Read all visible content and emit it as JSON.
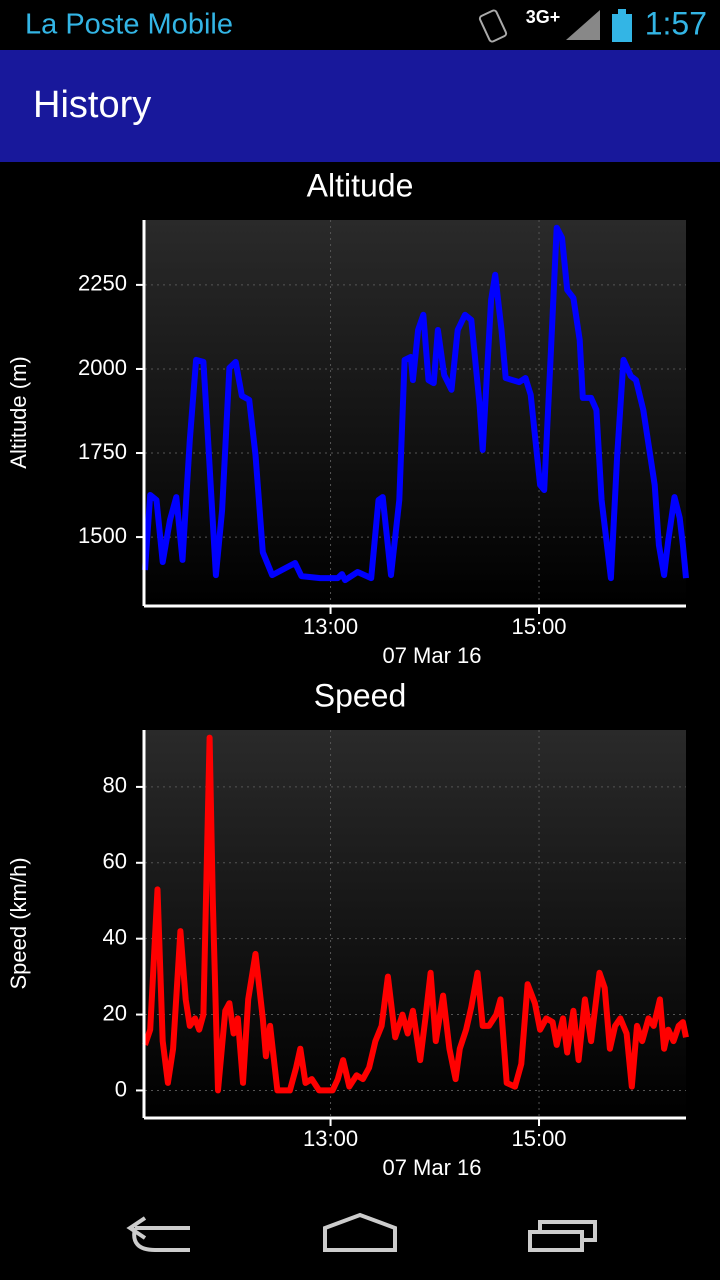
{
  "status_bar": {
    "app": "La Poste Mobile",
    "network": "3G+",
    "time": "1:57"
  },
  "app_bar": {
    "title": "History"
  },
  "chart_data": [
    {
      "type": "line",
      "title": "Altitude",
      "x_label": "07 Mar 16",
      "y_label": "Altitude (m)",
      "color": "#0000ff",
      "grid": true,
      "xlim": [
        11.22,
        16.41
      ],
      "xticks": [
        {
          "value": 13,
          "label": "13:00"
        },
        {
          "value": 15,
          "label": "15:00"
        }
      ],
      "ylim": [
        1298,
        2443
      ],
      "yticks": [
        1500,
        1750,
        2000,
        2250
      ],
      "x": [
        11.22,
        11.27,
        11.33,
        11.39,
        11.46,
        11.52,
        11.58,
        11.65,
        11.71,
        11.78,
        11.82,
        11.9,
        11.96,
        12.03,
        12.09,
        12.15,
        12.22,
        12.28,
        12.35,
        12.44,
        12.66,
        12.72,
        12.9,
        13.07,
        13.11,
        13.14,
        13.26,
        13.39,
        13.46,
        13.5,
        13.58,
        13.66,
        13.71,
        13.77,
        13.79,
        13.84,
        13.89,
        13.94,
        13.99,
        14.03,
        14.09,
        14.16,
        14.22,
        14.29,
        14.35,
        14.43,
        14.46,
        14.54,
        14.58,
        14.64,
        14.68,
        14.81,
        14.87,
        14.92,
        15.01,
        15.05,
        15.11,
        15.17,
        15.22,
        15.27,
        15.33,
        15.39,
        15.42,
        15.5,
        15.55,
        15.6,
        15.69,
        15.75,
        15.81,
        15.88,
        15.93,
        16.0,
        16.11,
        16.15,
        16.2,
        16.24,
        16.3,
        16.35,
        16.38,
        16.41
      ],
      "values": [
        1402,
        1625,
        1610,
        1426,
        1551,
        1619,
        1432,
        1789,
        2027,
        2021,
        1818,
        1387,
        1580,
        2003,
        2021,
        1920,
        1908,
        1744,
        1455,
        1387,
        1423,
        1384,
        1378,
        1378,
        1390,
        1372,
        1396,
        1378,
        1610,
        1619,
        1387,
        1610,
        2027,
        2036,
        1967,
        2116,
        2161,
        1967,
        1958,
        2116,
        1982,
        1938,
        2116,
        2161,
        2146,
        1893,
        1759,
        2205,
        2280,
        2116,
        1973,
        1961,
        1973,
        1923,
        1655,
        1640,
        2027,
        2420,
        2390,
        2235,
        2211,
        2086,
        1914,
        1914,
        1878,
        1610,
        1378,
        1744,
        2027,
        1979,
        1967,
        1878,
        1655,
        1476,
        1387,
        1491,
        1619,
        1557,
        1476,
        1378
      ]
    },
    {
      "type": "line",
      "title": "Speed",
      "x_label": "07 Mar 16",
      "y_label": "Speed (km/h)",
      "color": "#ff0000",
      "grid": true,
      "xlim": [
        11.22,
        16.41
      ],
      "xticks": [
        {
          "value": 13,
          "label": "13:00"
        },
        {
          "value": 15,
          "label": "15:00"
        }
      ],
      "ylim": [
        -7,
        95
      ],
      "yticks": [
        0,
        20,
        40,
        60,
        80
      ],
      "x": [
        11.22,
        11.27,
        11.34,
        11.39,
        11.44,
        11.49,
        11.56,
        11.61,
        11.65,
        11.7,
        11.74,
        11.78,
        11.84,
        11.87,
        11.92,
        11.99,
        12.03,
        12.07,
        12.11,
        12.16,
        12.21,
        12.28,
        12.35,
        12.38,
        12.42,
        12.49,
        12.61,
        12.67,
        12.71,
        12.76,
        12.82,
        12.89,
        13.02,
        13.07,
        13.12,
        13.18,
        13.25,
        13.31,
        13.37,
        13.43,
        13.49,
        13.55,
        13.62,
        13.69,
        13.74,
        13.79,
        13.86,
        13.91,
        13.96,
        14.01,
        14.08,
        14.14,
        14.2,
        14.24,
        14.3,
        14.35,
        14.41,
        14.46,
        14.52,
        14.59,
        14.63,
        14.69,
        14.77,
        14.83,
        14.89,
        14.96,
        15.01,
        15.07,
        15.13,
        15.17,
        15.23,
        15.27,
        15.33,
        15.38,
        15.44,
        15.5,
        15.58,
        15.63,
        15.68,
        15.73,
        15.78,
        15.84,
        15.89,
        15.94,
        15.99,
        16.05,
        16.1,
        16.16,
        16.2,
        16.24,
        16.29,
        16.34,
        16.38,
        16.41
      ],
      "values": [
        12,
        16,
        53,
        13,
        2,
        11,
        42,
        24,
        17,
        19,
        16,
        20,
        93,
        50,
        0,
        21,
        23,
        15,
        19,
        2,
        24,
        36,
        19,
        9,
        17,
        0,
        0,
        6,
        11,
        2,
        3,
        0,
        0,
        3,
        8,
        1,
        4,
        3,
        6,
        13,
        17,
        30,
        14,
        20,
        15,
        21,
        8,
        19,
        31,
        13,
        25,
        11,
        3,
        11,
        16,
        22,
        31,
        17,
        17,
        20,
        24,
        2,
        1,
        7,
        28,
        23,
        16,
        19,
        18,
        12,
        19,
        10,
        21,
        8,
        24,
        13,
        31,
        27,
        11,
        17,
        19,
        15,
        1,
        17,
        13,
        19,
        17,
        24,
        11,
        16,
        13,
        17,
        18,
        14
      ]
    }
  ]
}
